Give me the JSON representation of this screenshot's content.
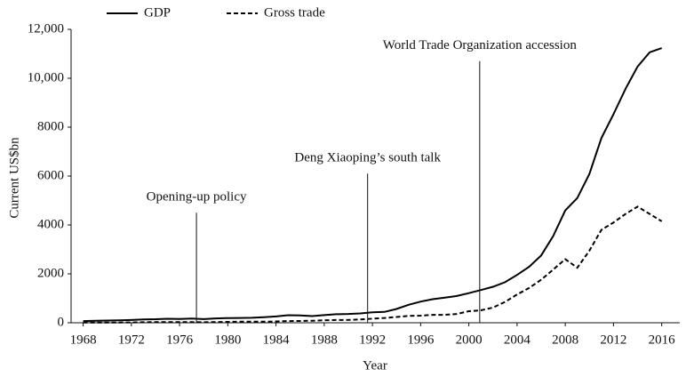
{
  "chart_data": {
    "type": "line",
    "xlabel": "Year",
    "ylabel": "Current US$bn",
    "x": [
      1968,
      1969,
      1970,
      1971,
      1972,
      1973,
      1974,
      1975,
      1976,
      1977,
      1978,
      1979,
      1980,
      1981,
      1982,
      1983,
      1984,
      1985,
      1986,
      1987,
      1988,
      1989,
      1990,
      1991,
      1992,
      1993,
      1994,
      1995,
      1996,
      1997,
      1998,
      1999,
      2000,
      2001,
      2002,
      2003,
      2004,
      2005,
      2006,
      2007,
      2008,
      2009,
      2010,
      2011,
      2012,
      2013,
      2014,
      2015,
      2016
    ],
    "series": [
      {
        "name": "GDP",
        "color": "#000000",
        "dash": "solid",
        "values": [
          70,
          80,
          92,
          100,
          114,
          139,
          144,
          163,
          154,
          175,
          150,
          178,
          191,
          196,
          205,
          230,
          260,
          309,
          301,
          272,
          312,
          348,
          361,
          383,
          427,
          444,
          564,
          734,
          864,
          962,
          1029,
          1094,
          1211,
          1339,
          1471,
          1660,
          1955,
          2286,
          2752,
          3550,
          4594,
          5102,
          6087,
          7552,
          8532,
          9570,
          10476,
          11062,
          11233
        ]
      },
      {
        "name": "Gross trade",
        "color": "#000000",
        "dash": "dashed",
        "values": [
          8,
          9,
          10,
          12,
          15,
          22,
          29,
          29,
          27,
          27,
          21,
          29,
          38,
          44,
          42,
          44,
          54,
          70,
          74,
          83,
          103,
          112,
          115,
          136,
          166,
          196,
          237,
          281,
          290,
          325,
          324,
          361,
          474,
          510,
          621,
          851,
          1155,
          1422,
          1760,
          2176,
          2600,
          2250,
          2950,
          3800,
          4100,
          4450,
          4750,
          4450,
          4150
        ]
      }
    ],
    "xlim": [
      1967,
      2017.5
    ],
    "xticks": [
      1968,
      1972,
      1976,
      1980,
      1984,
      1988,
      1992,
      1996,
      2000,
      2004,
      2008,
      2012,
      2016
    ],
    "ylim": [
      0,
      12000
    ],
    "yticks": [
      0,
      2000,
      4000,
      6000,
      8000,
      {
        "value": 10000,
        "label": "10,000"
      },
      {
        "value": 12000,
        "label": "12,000"
      }
    ],
    "annotations": [
      {
        "text": "Opening-up policy",
        "x": 1977.4,
        "y": 4500
      },
      {
        "text": "Deng Xiaoping’s south talk",
        "x": 1991.6,
        "y": 6100
      },
      {
        "text": "World Trade Organization accession",
        "x": 2000.9,
        "y": 10700
      }
    ],
    "legend": "top"
  }
}
